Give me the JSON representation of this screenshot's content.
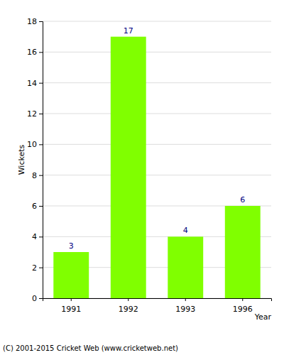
{
  "chart_data": {
    "type": "bar",
    "categories": [
      "1991",
      "1992",
      "1993",
      "1996"
    ],
    "values": [
      3,
      17,
      4,
      6
    ],
    "color": "#80ff00",
    "x_label": "Year",
    "y_label": "Wickets",
    "ylim": [
      0,
      18
    ],
    "yticks": [
      0,
      2,
      4,
      6,
      8,
      10,
      12,
      14,
      16,
      18
    ],
    "grid": true,
    "data_labels": true,
    "annotations": [
      "(C) 2001-2015 Cricket Web (www.cricketweb.net)"
    ]
  }
}
